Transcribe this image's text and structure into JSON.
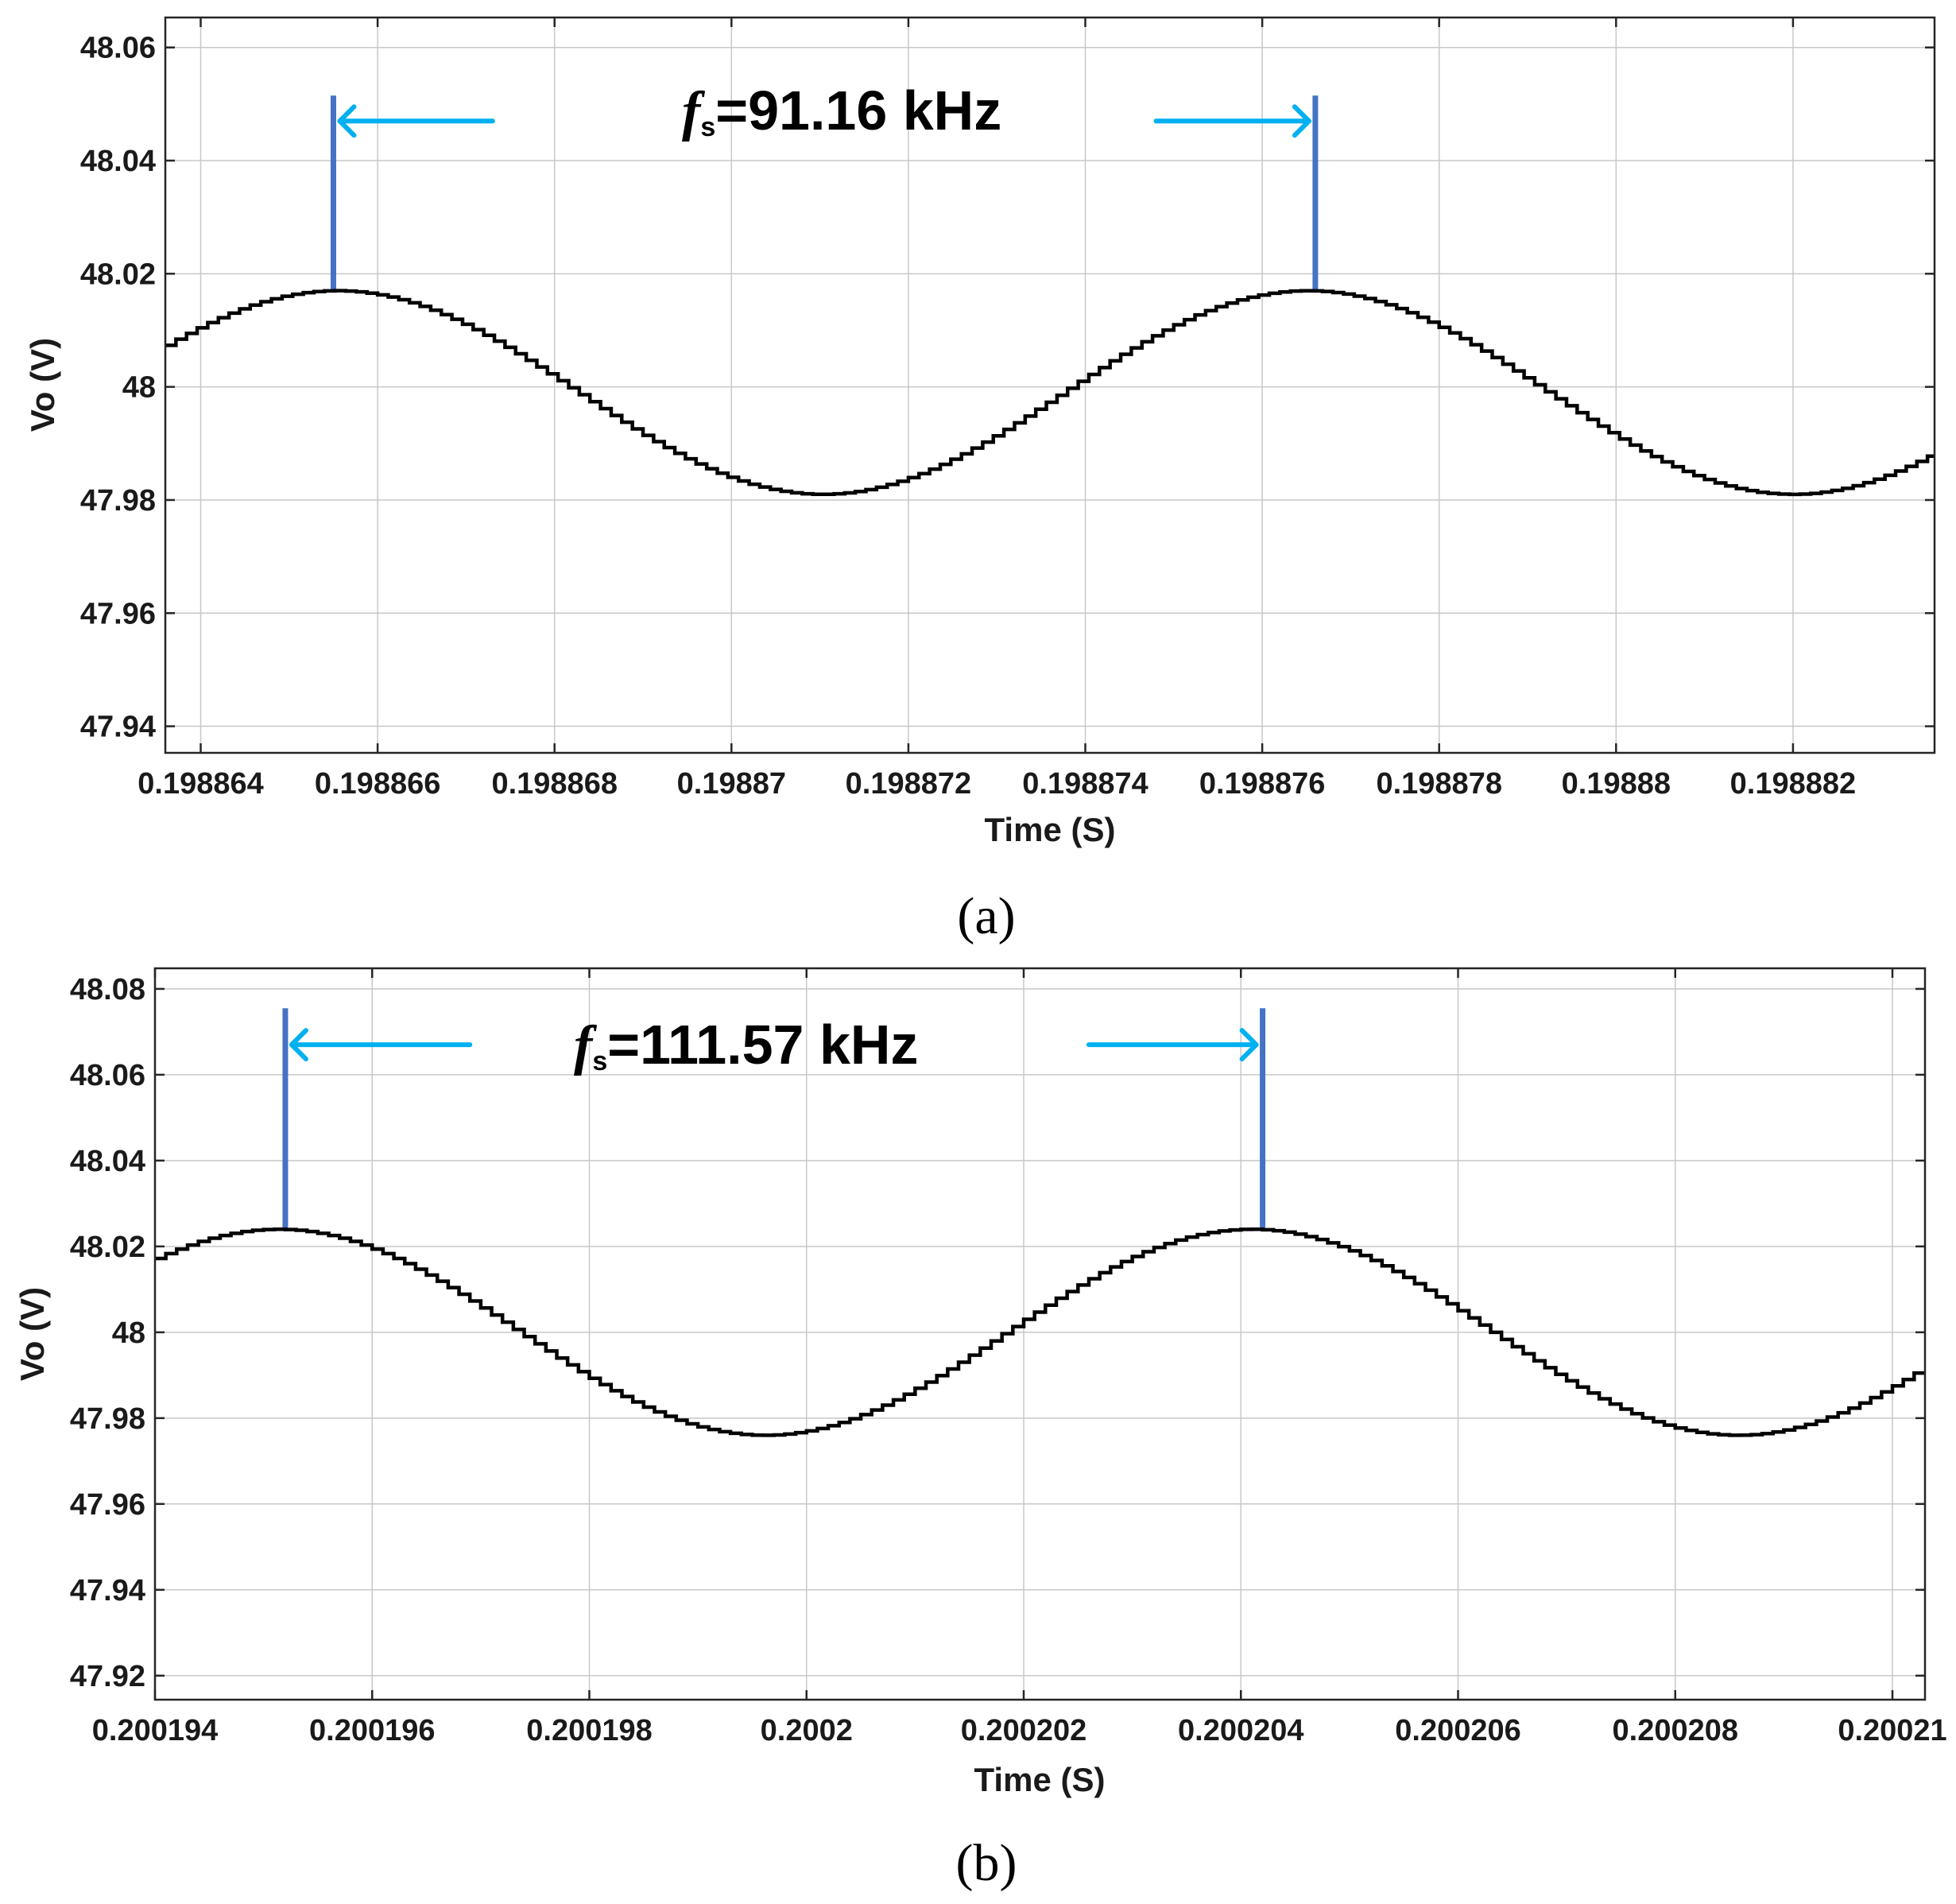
{
  "colors": {
    "waveform": "#000000",
    "marker": "#4472c4",
    "arrow": "#00b0f0",
    "grid": "#c8c8c8",
    "axes": "#262626",
    "text": "#1a1a1a"
  },
  "chart_data": [
    {
      "type": "line",
      "panel_label": "(a)",
      "xlabel": "Time (S)",
      "ylabel": "Vo (V)",
      "xlim": [
        0.1988636,
        0.1988836
      ],
      "ylim": [
        47.9353,
        48.0653
      ],
      "grid": true,
      "x_ticks": [
        0.198864,
        0.198866,
        0.198868,
        0.19887,
        0.198872,
        0.198874,
        0.198876,
        0.198878,
        0.19888,
        0.198882
      ],
      "x_tick_labels": [
        "0.198864",
        "0.198866",
        "0.198868",
        "0.19887",
        "0.198872",
        "0.198874",
        "0.198876",
        "0.198878",
        "0.19888",
        "0.198882"
      ],
      "y_ticks": [
        47.94,
        47.96,
        47.98,
        48,
        48.02,
        48.04,
        48.06
      ],
      "y_tick_labels": [
        "47.94",
        "47.96",
        "47.98",
        "48",
        "48.02",
        "48.04",
        "48.06"
      ],
      "series": [
        {
          "name": "Vo",
          "waveform": "stepped sinusoid",
          "mean": 47.999,
          "amplitude": 0.018,
          "first_peak_time": 0.1988655,
          "period": 1.097e-05,
          "x_start": 0.1988636,
          "x_end": 0.1988836,
          "step": 1.2e-07
        }
      ],
      "markers": [
        {
          "name": "period-start",
          "x": 0.1988655,
          "y_from": 48.017,
          "y_to": 48.0515
        },
        {
          "name": "period-end",
          "x": 0.1988766,
          "y_from": 48.017,
          "y_to": 48.0515
        }
      ],
      "annotation": {
        "f_symbol": "f",
        "subscript": "s",
        "value_text": "=91.16 kHz",
        "arrow_y": 48.047,
        "left_arrow_tail_x": 0.1988673,
        "right_arrow_tail_x": 0.1988748
      }
    },
    {
      "type": "line",
      "panel_label": "(b)",
      "xlabel": "Time (S)",
      "ylabel": "Vo (V)",
      "xlim": [
        0.200194,
        0.2002103
      ],
      "ylim": [
        47.9144,
        48.0848
      ],
      "grid": true,
      "x_ticks": [
        0.200194,
        0.200196,
        0.200198,
        0.2002,
        0.200202,
        0.200204,
        0.200206,
        0.200208,
        0.20021
      ],
      "x_tick_labels": [
        "0.200194",
        "0.200196",
        "0.200198",
        "0.2002",
        "0.200202",
        "0.200204",
        "0.200206",
        "0.200208",
        "0.20021"
      ],
      "y_ticks": [
        47.92,
        47.94,
        47.96,
        47.98,
        48,
        48.02,
        48.04,
        48.06,
        48.08
      ],
      "y_tick_labels": [
        "47.92",
        "47.94",
        "47.96",
        "47.98",
        "48",
        "48.02",
        "48.04",
        "48.06",
        "48.08"
      ],
      "series": [
        {
          "name": "Vo",
          "waveform": "stepped sinusoid",
          "mean": 48.0,
          "amplitude": 0.024,
          "first_peak_time": 0.2001951,
          "period": 8.96e-06,
          "x_start": 0.200194,
          "x_end": 0.2002103,
          "step": 1e-07
        }
      ],
      "markers": [
        {
          "name": "period-start",
          "x": 0.2001952,
          "y_from": 48.024,
          "y_to": 48.0755
        },
        {
          "name": "period-end",
          "x": 0.2002042,
          "y_from": 48.024,
          "y_to": 48.0755
        }
      ],
      "annotation": {
        "f_symbol": "f",
        "subscript": "s",
        "value_text": "=111.57 kHz",
        "arrow_y": 48.067,
        "left_arrow_tail_x": 0.2001969,
        "right_arrow_tail_x": 0.2002026
      }
    }
  ]
}
